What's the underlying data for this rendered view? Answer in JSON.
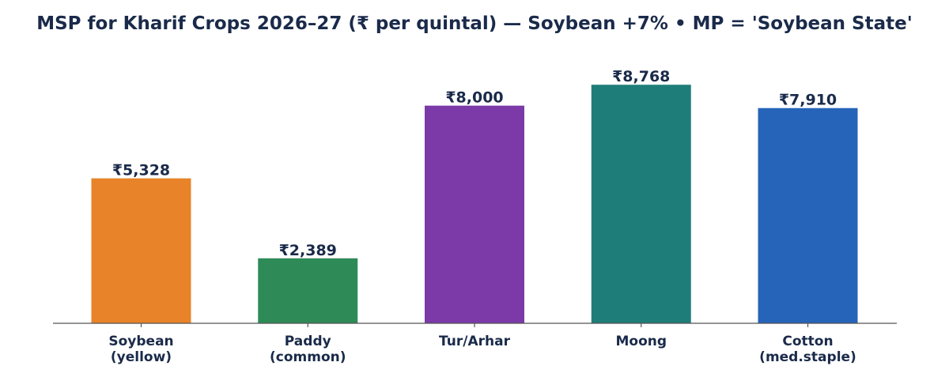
{
  "chart_data": {
    "type": "bar",
    "title": "MSP for Kharif Crops 2026–27 (₹ per quintal) — Soybean +7%  •  MP = 'Soybean State'",
    "xlabel": "",
    "ylabel": "",
    "categories": [
      [
        "Soybean",
        "(yellow)"
      ],
      [
        "Paddy",
        "(common)"
      ],
      [
        "Tur/Arhar"
      ],
      [
        "Moong"
      ],
      [
        "Cotton",
        "(med.staple)"
      ]
    ],
    "values": [
      5328,
      2389,
      8000,
      8768,
      7910
    ],
    "value_labels": [
      "₹5,328",
      "₹2,389",
      "₹8,000",
      "₹8,768",
      "₹7,910"
    ],
    "colors": [
      "#e8832a",
      "#2e8b57",
      "#7b3aa8",
      "#1e7d78",
      "#2564b8"
    ],
    "ylim": [
      0,
      9210
    ],
    "grid": false,
    "legend": "none"
  }
}
